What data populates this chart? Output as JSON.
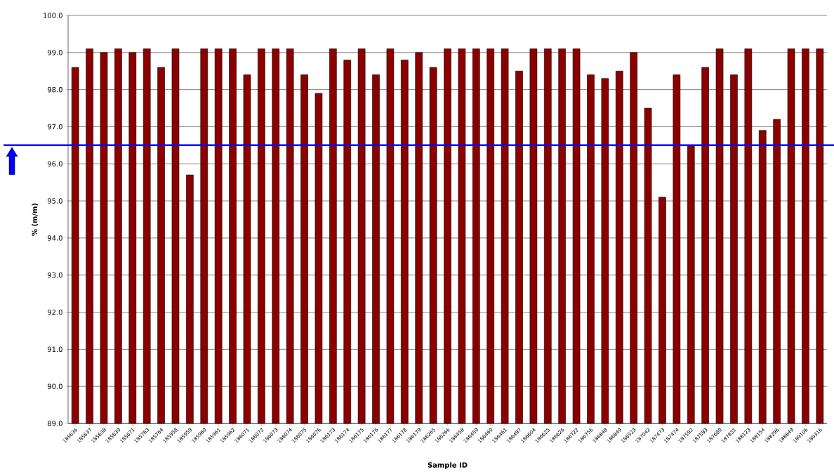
{
  "chart_data": {
    "type": "bar",
    "xlabel": "Sample ID",
    "ylabel": "% (m/m)",
    "categories": [
      "185636",
      "185637",
      "185638",
      "185639",
      "185671",
      "185763",
      "185764",
      "185958",
      "185959",
      "185960",
      "185961",
      "185962",
      "186071",
      "186072",
      "186073",
      "186074",
      "186075",
      "186076",
      "186173",
      "186174",
      "186175",
      "186176",
      "186177",
      "186178",
      "186179",
      "186265",
      "186266",
      "186458",
      "186459",
      "186460",
      "186461",
      "186497",
      "186604",
      "186625",
      "186626",
      "186722",
      "186756",
      "186848",
      "186849",
      "186923",
      "187042",
      "187473",
      "187474",
      "187592",
      "187593",
      "187680",
      "187831",
      "188123",
      "188154",
      "188296",
      "188849",
      "189106",
      "189316"
    ],
    "values": [
      98.6,
      99.1,
      99.0,
      99.1,
      99.0,
      99.1,
      98.6,
      99.1,
      95.7,
      99.1,
      99.1,
      99.1,
      98.4,
      99.1,
      99.1,
      99.1,
      98.4,
      97.9,
      99.1,
      98.8,
      99.1,
      98.4,
      99.1,
      98.8,
      99.0,
      98.6,
      99.1,
      99.1,
      99.1,
      99.1,
      99.1,
      98.5,
      99.1,
      99.1,
      99.1,
      99.1,
      98.4,
      98.3,
      98.5,
      99.0,
      97.5,
      95.1,
      98.4,
      96.5,
      98.6,
      99.1,
      98.4,
      99.1,
      96.9,
      97.2,
      99.1,
      99.1,
      99.1
    ],
    "color": "#8b0000",
    "ylim": [
      89,
      100
    ],
    "yticks": [
      {
        "value": 89,
        "label": "89.0"
      },
      {
        "value": 90,
        "label": "90.0"
      },
      {
        "value": 91,
        "label": "91.0"
      },
      {
        "value": 92,
        "label": "92.0"
      },
      {
        "value": 93,
        "label": "93.0"
      },
      {
        "value": 94,
        "label": "94.0"
      },
      {
        "value": 95,
        "label": "95.0"
      },
      {
        "value": 96,
        "label": "96.0"
      },
      {
        "value": 97,
        "label": "97.0"
      },
      {
        "value": 98,
        "label": "98.0"
      },
      {
        "value": 99,
        "label": "99.0"
      },
      {
        "value": 100,
        "label": "100.0"
      }
    ],
    "grid": "y",
    "ref_lines": [
      {
        "axis": "y",
        "value": 96.5,
        "color": "#0000ff"
      }
    ]
  }
}
